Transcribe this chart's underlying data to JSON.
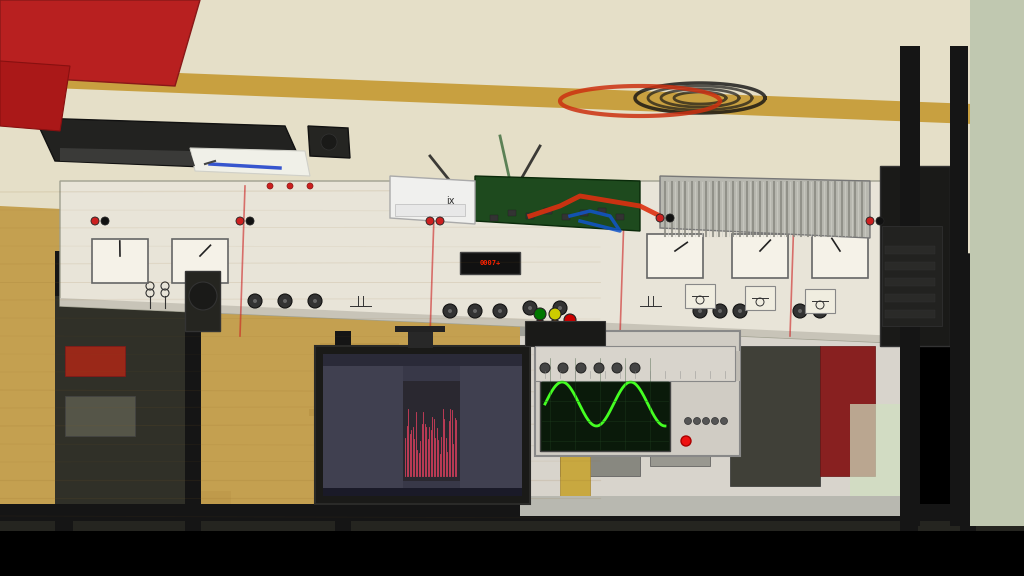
{
  "figsize": [
    10.24,
    5.76
  ],
  "dpi": 100,
  "background_color": "#000000",
  "osb_wall_color": "#b8943f",
  "osb_wall_dark": "#9a7a30",
  "ceiling_color": "#888880",
  "lab_back_color": "#c8c4bc",
  "table_top_color": "#e8e2cc",
  "table_edge_color": "#c8a855",
  "panel_color": "#e8e5dc",
  "panel_edge_color": "#999990",
  "monitor_bezel": "#1a1a18",
  "monitor_screen": "#3a3a50",
  "osc_body": "#d8d4cc",
  "osc_screen": "#1a2a18",
  "keyboard_color": "#222220",
  "chair_color": "#b82020",
  "pcb_color": "#2a5a2a",
  "heatsink_color": "#c0c0b8",
  "white_box_color": "#f0f0ee",
  "black_frame_color": "#181818",
  "floor_color": "#888882"
}
